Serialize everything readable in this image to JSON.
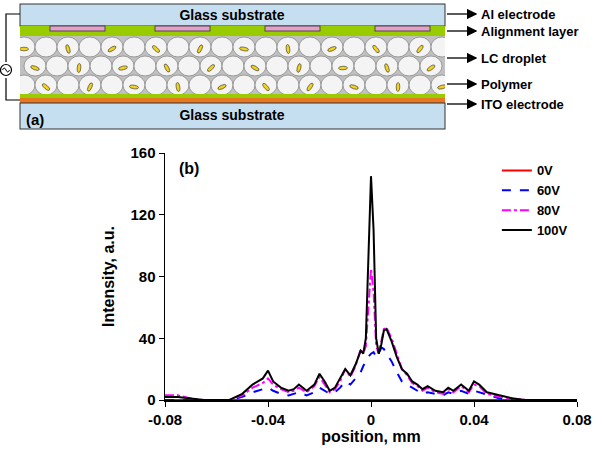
{
  "diagram": {
    "panel_label": "(a)",
    "top_substrate": "Glass substrate",
    "bottom_substrate": "Glass substrate",
    "labels": [
      "Al electrode",
      "Alignment layer",
      "LC droplet",
      "Polymer",
      "ITO electrode"
    ]
  },
  "chart_data": {
    "type": "line",
    "panel_label": "(b)",
    "x_label": "position, mm",
    "y_label": "Intensity, a.u.",
    "x": [
      -0.08,
      -0.075,
      -0.07,
      -0.065,
      -0.06,
      -0.055,
      -0.05,
      -0.046,
      -0.042,
      -0.04,
      -0.038,
      -0.035,
      -0.032,
      -0.03,
      -0.028,
      -0.025,
      -0.022,
      -0.02,
      -0.018,
      -0.016,
      -0.014,
      -0.012,
      -0.01,
      -0.008,
      -0.006,
      -0.004,
      -0.003,
      -0.002,
      -0.001,
      0,
      0.001,
      0.002,
      0.003,
      0.004,
      0.005,
      0.006,
      0.008,
      0.01,
      0.012,
      0.014,
      0.016,
      0.018,
      0.02,
      0.022,
      0.025,
      0.028,
      0.03,
      0.032,
      0.035,
      0.038,
      0.04,
      0.042,
      0.045,
      0.05,
      0.055,
      0.06,
      0.065,
      0.07,
      0.075,
      0.08
    ],
    "series": [
      {
        "name": "0V",
        "color": "#ff0000",
        "line_style": "solid",
        "values": [
          0,
          0,
          0,
          0,
          0,
          0,
          0,
          0,
          0,
          0,
          0,
          0,
          0,
          0,
          0,
          0,
          0,
          0,
          0,
          0,
          0,
          0,
          0,
          0,
          0,
          0,
          0,
          0,
          0,
          0,
          0,
          0,
          0,
          0,
          0,
          0,
          0,
          0,
          0,
          0,
          0,
          0,
          0,
          0,
          0,
          0,
          0,
          0,
          0,
          0,
          0,
          0,
          0,
          0,
          0,
          0,
          0,
          0,
          0,
          0
        ]
      },
      {
        "name": "60V",
        "color": "#0000ff",
        "line_style": "dash",
        "values": [
          0,
          0,
          0,
          0,
          0,
          0,
          2,
          5,
          7,
          8,
          6,
          4,
          3,
          4,
          5,
          3,
          5,
          8,
          6,
          4,
          5,
          8,
          12,
          10,
          14,
          18,
          22,
          25,
          28,
          30,
          31,
          28,
          30,
          34,
          33,
          30,
          25,
          18,
          12,
          10,
          8,
          6,
          4,
          5,
          4,
          3,
          5,
          4,
          6,
          4,
          6,
          5,
          3,
          1,
          0,
          0,
          0,
          0,
          0,
          0
        ]
      },
      {
        "name": "80V",
        "color": "#ff00ff",
        "line_style": "dashdot",
        "values": [
          3,
          3,
          1,
          0,
          0,
          0,
          3,
          8,
          11,
          14,
          10,
          7,
          5,
          6,
          8,
          5,
          9,
          15,
          10,
          5,
          7,
          12,
          20,
          15,
          22,
          33,
          30,
          35,
          60,
          85,
          70,
          35,
          30,
          38,
          46,
          47,
          40,
          30,
          20,
          16,
          11,
          9,
          6,
          8,
          5,
          4,
          7,
          5,
          9,
          5,
          10,
          9,
          4,
          2,
          1,
          0,
          0,
          0,
          0,
          0
        ]
      },
      {
        "name": "100V",
        "color": "#000000",
        "line_style": "solid",
        "values": [
          2,
          2,
          1,
          0,
          0,
          0,
          4,
          10,
          14,
          19,
          12,
          8,
          6,
          7,
          10,
          6,
          10,
          17,
          12,
          6,
          8,
          14,
          20,
          16,
          23,
          32,
          30,
          40,
          90,
          145,
          110,
          40,
          30,
          36,
          45,
          46,
          38,
          28,
          20,
          17,
          12,
          10,
          7,
          9,
          6,
          5,
          8,
          6,
          10,
          6,
          12,
          10,
          5,
          3,
          1,
          0,
          0,
          0,
          0,
          0
        ]
      }
    ],
    "xlim": [
      -0.08,
      0.08
    ],
    "xticks": [
      -0.08,
      -0.04,
      0,
      0.04,
      0.08
    ],
    "ylim": [
      0,
      160
    ],
    "yticks": [
      0,
      40,
      80,
      120,
      160
    ],
    "grid": false,
    "legend": "top right"
  }
}
